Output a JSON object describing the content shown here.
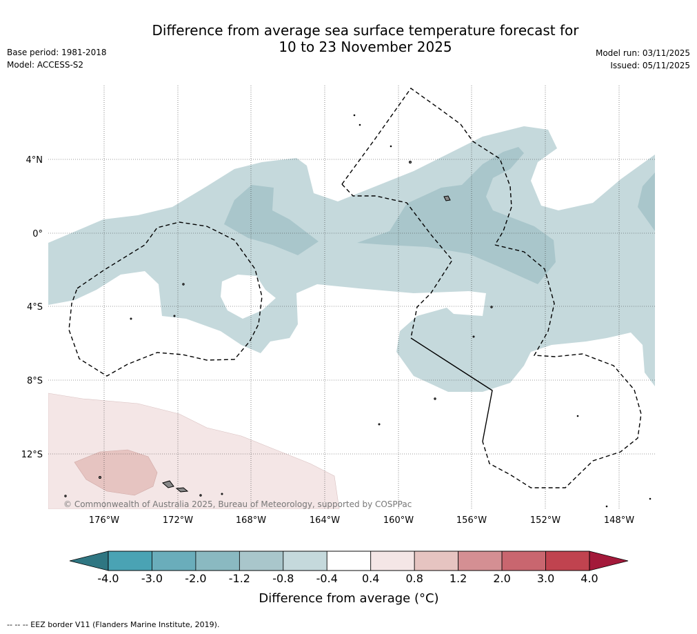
{
  "title_line1": "Difference from average sea surface temperature forecast for",
  "title_line2": "10 to 23 November 2025",
  "base_period": "Base period: 1981-2018",
  "model": "Model: ACCESS-S2",
  "model_run": "Model run: 03/11/2025",
  "issued": "Issued: 05/11/2025",
  "copyright": "© Commonwealth of Australia 2025, Bureau of Meteorology, supported by COSPPac",
  "lat_labels": [
    "4°N",
    "0°",
    "4°S",
    "8°S",
    "12°S"
  ],
  "lon_labels": [
    "176°W",
    "172°W",
    "168°W",
    "164°W",
    "160°W",
    "156°W",
    "152°W",
    "148°W"
  ],
  "colorbar": {
    "label": "Difference from average (°C)",
    "ticks": [
      "-4.0",
      "-3.0",
      "-2.0",
      "-1.2",
      "-0.8",
      "-0.4",
      "0.4",
      "0.8",
      "1.2",
      "2.0",
      "3.0",
      "4.0"
    ],
    "colors": [
      "#4aa3b4",
      "#6aadbb",
      "#8ab9c1",
      "#a9c6cb",
      "#c5d9dc",
      "#ffffff",
      "#f4e6e6",
      "#e6c4c1",
      "#d48f93",
      "#c9666f",
      "#c0434f"
    ],
    "under_color": "#2f7682",
    "over_color": "#a3193a"
  },
  "footer": "--  --  -- EEZ border V11 (Flanders Marine Institute, 2019).",
  "colors": {
    "anom_cool_1": "#c5d9dc",
    "anom_cool_2": "#a9c6cb",
    "anom_warm_1": "#f4e6e6",
    "anom_warm_2": "#e6c4c1"
  }
}
